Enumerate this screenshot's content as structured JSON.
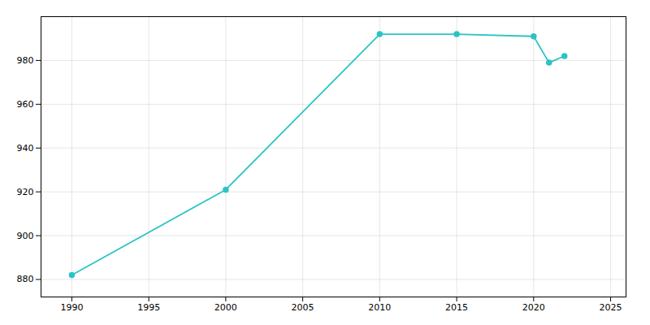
{
  "chart_data": {
    "type": "line",
    "x": [
      1990,
      2000,
      2010,
      2015,
      2020,
      2021,
      2022
    ],
    "values": [
      882,
      921,
      992,
      992,
      991,
      979,
      982
    ],
    "color": "#2BC4C4",
    "marker": "circle",
    "xlim": [
      1988,
      2026
    ],
    "ylim": [
      872,
      1000
    ],
    "xticks": [
      1990,
      1995,
      2000,
      2005,
      2010,
      2015,
      2020,
      2025
    ],
    "yticks": [
      880,
      900,
      920,
      940,
      960,
      980
    ],
    "grid": true
  }
}
